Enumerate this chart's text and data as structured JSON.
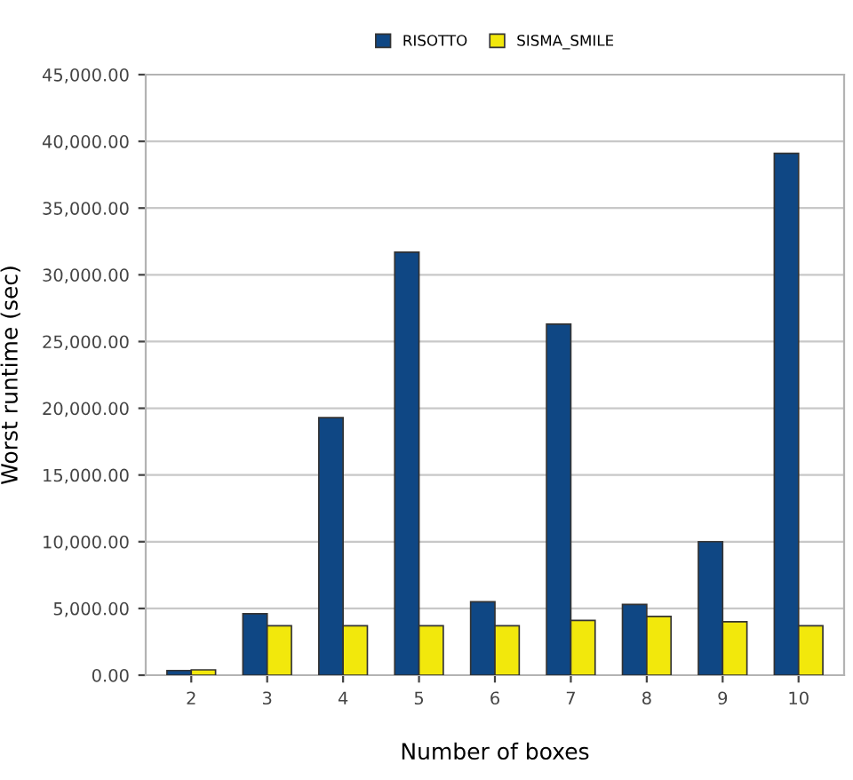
{
  "chart_data": {
    "type": "bar",
    "xlabel": "Number of boxes",
    "ylabel": "Worst runtime (sec)",
    "categories": [
      "2",
      "3",
      "4",
      "5",
      "6",
      "7",
      "8",
      "9",
      "10"
    ],
    "series": [
      {
        "name": "RISOTTO",
        "color": "#0f4784",
        "values": [
          350,
          4600,
          19300,
          31700,
          5500,
          26300,
          5300,
          10000,
          39100
        ]
      },
      {
        "name": "SISMA_SMILE",
        "color": "#f2e80c",
        "values": [
          400,
          3700,
          3700,
          3700,
          3700,
          4100,
          4400,
          4000,
          3700
        ]
      }
    ],
    "ylim": [
      0,
      45000
    ],
    "yticks": [
      {
        "value": 0,
        "label": "0.00"
      },
      {
        "value": 5000,
        "label": "5,000.00"
      },
      {
        "value": 10000,
        "label": "10,000.00"
      },
      {
        "value": 15000,
        "label": "15,000.00"
      },
      {
        "value": 20000,
        "label": "20,000.00"
      },
      {
        "value": 25000,
        "label": "25,000.00"
      },
      {
        "value": 30000,
        "label": "30,000.00"
      },
      {
        "value": 35000,
        "label": "35,000.00"
      },
      {
        "value": 40000,
        "label": "40,000.00"
      },
      {
        "value": 45000,
        "label": "45,000.00"
      }
    ],
    "grid": "y",
    "legend": "top"
  }
}
